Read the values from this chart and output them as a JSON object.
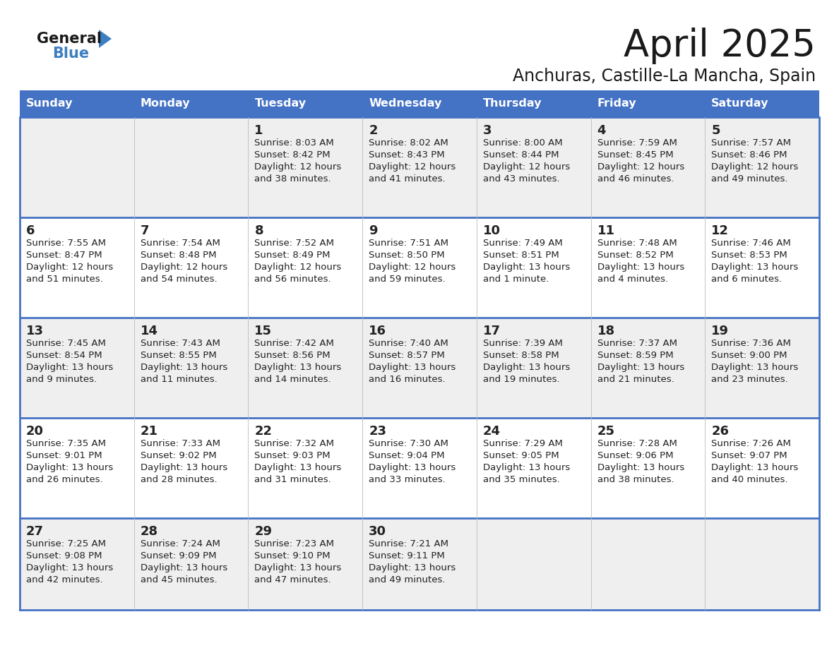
{
  "title": "April 2025",
  "subtitle": "Anchuras, Castille-La Mancha, Spain",
  "days_of_week": [
    "Sunday",
    "Monday",
    "Tuesday",
    "Wednesday",
    "Thursday",
    "Friday",
    "Saturday"
  ],
  "header_bg": "#4472C4",
  "header_text": "#FFFFFF",
  "row_bg_odd": "#EFEFEF",
  "row_bg_even": "#FFFFFF",
  "text_color": "#222222",
  "day_num_color": "#222222",
  "cell_text_color": "#222222",
  "border_color": "#4472C4",
  "divider_color": "#BBBBBB",
  "logo_general_color": "#1a1a1a",
  "logo_blue_color": "#3d7fc1",
  "logo_triangle_color": "#3d7fc1",
  "calendar_data": [
    [
      {
        "day": null,
        "info": null
      },
      {
        "day": null,
        "info": null
      },
      {
        "day": 1,
        "info": "Sunrise: 8:03 AM\nSunset: 8:42 PM\nDaylight: 12 hours\nand 38 minutes."
      },
      {
        "day": 2,
        "info": "Sunrise: 8:02 AM\nSunset: 8:43 PM\nDaylight: 12 hours\nand 41 minutes."
      },
      {
        "day": 3,
        "info": "Sunrise: 8:00 AM\nSunset: 8:44 PM\nDaylight: 12 hours\nand 43 minutes."
      },
      {
        "day": 4,
        "info": "Sunrise: 7:59 AM\nSunset: 8:45 PM\nDaylight: 12 hours\nand 46 minutes."
      },
      {
        "day": 5,
        "info": "Sunrise: 7:57 AM\nSunset: 8:46 PM\nDaylight: 12 hours\nand 49 minutes."
      }
    ],
    [
      {
        "day": 6,
        "info": "Sunrise: 7:55 AM\nSunset: 8:47 PM\nDaylight: 12 hours\nand 51 minutes."
      },
      {
        "day": 7,
        "info": "Sunrise: 7:54 AM\nSunset: 8:48 PM\nDaylight: 12 hours\nand 54 minutes."
      },
      {
        "day": 8,
        "info": "Sunrise: 7:52 AM\nSunset: 8:49 PM\nDaylight: 12 hours\nand 56 minutes."
      },
      {
        "day": 9,
        "info": "Sunrise: 7:51 AM\nSunset: 8:50 PM\nDaylight: 12 hours\nand 59 minutes."
      },
      {
        "day": 10,
        "info": "Sunrise: 7:49 AM\nSunset: 8:51 PM\nDaylight: 13 hours\nand 1 minute."
      },
      {
        "day": 11,
        "info": "Sunrise: 7:48 AM\nSunset: 8:52 PM\nDaylight: 13 hours\nand 4 minutes."
      },
      {
        "day": 12,
        "info": "Sunrise: 7:46 AM\nSunset: 8:53 PM\nDaylight: 13 hours\nand 6 minutes."
      }
    ],
    [
      {
        "day": 13,
        "info": "Sunrise: 7:45 AM\nSunset: 8:54 PM\nDaylight: 13 hours\nand 9 minutes."
      },
      {
        "day": 14,
        "info": "Sunrise: 7:43 AM\nSunset: 8:55 PM\nDaylight: 13 hours\nand 11 minutes."
      },
      {
        "day": 15,
        "info": "Sunrise: 7:42 AM\nSunset: 8:56 PM\nDaylight: 13 hours\nand 14 minutes."
      },
      {
        "day": 16,
        "info": "Sunrise: 7:40 AM\nSunset: 8:57 PM\nDaylight: 13 hours\nand 16 minutes."
      },
      {
        "day": 17,
        "info": "Sunrise: 7:39 AM\nSunset: 8:58 PM\nDaylight: 13 hours\nand 19 minutes."
      },
      {
        "day": 18,
        "info": "Sunrise: 7:37 AM\nSunset: 8:59 PM\nDaylight: 13 hours\nand 21 minutes."
      },
      {
        "day": 19,
        "info": "Sunrise: 7:36 AM\nSunset: 9:00 PM\nDaylight: 13 hours\nand 23 minutes."
      }
    ],
    [
      {
        "day": 20,
        "info": "Sunrise: 7:35 AM\nSunset: 9:01 PM\nDaylight: 13 hours\nand 26 minutes."
      },
      {
        "day": 21,
        "info": "Sunrise: 7:33 AM\nSunset: 9:02 PM\nDaylight: 13 hours\nand 28 minutes."
      },
      {
        "day": 22,
        "info": "Sunrise: 7:32 AM\nSunset: 9:03 PM\nDaylight: 13 hours\nand 31 minutes."
      },
      {
        "day": 23,
        "info": "Sunrise: 7:30 AM\nSunset: 9:04 PM\nDaylight: 13 hours\nand 33 minutes."
      },
      {
        "day": 24,
        "info": "Sunrise: 7:29 AM\nSunset: 9:05 PM\nDaylight: 13 hours\nand 35 minutes."
      },
      {
        "day": 25,
        "info": "Sunrise: 7:28 AM\nSunset: 9:06 PM\nDaylight: 13 hours\nand 38 minutes."
      },
      {
        "day": 26,
        "info": "Sunrise: 7:26 AM\nSunset: 9:07 PM\nDaylight: 13 hours\nand 40 minutes."
      }
    ],
    [
      {
        "day": 27,
        "info": "Sunrise: 7:25 AM\nSunset: 9:08 PM\nDaylight: 13 hours\nand 42 minutes."
      },
      {
        "day": 28,
        "info": "Sunrise: 7:24 AM\nSunset: 9:09 PM\nDaylight: 13 hours\nand 45 minutes."
      },
      {
        "day": 29,
        "info": "Sunrise: 7:23 AM\nSunset: 9:10 PM\nDaylight: 13 hours\nand 47 minutes."
      },
      {
        "day": 30,
        "info": "Sunrise: 7:21 AM\nSunset: 9:11 PM\nDaylight: 13 hours\nand 49 minutes."
      },
      {
        "day": null,
        "info": null
      },
      {
        "day": null,
        "info": null
      },
      {
        "day": null,
        "info": null
      }
    ]
  ]
}
